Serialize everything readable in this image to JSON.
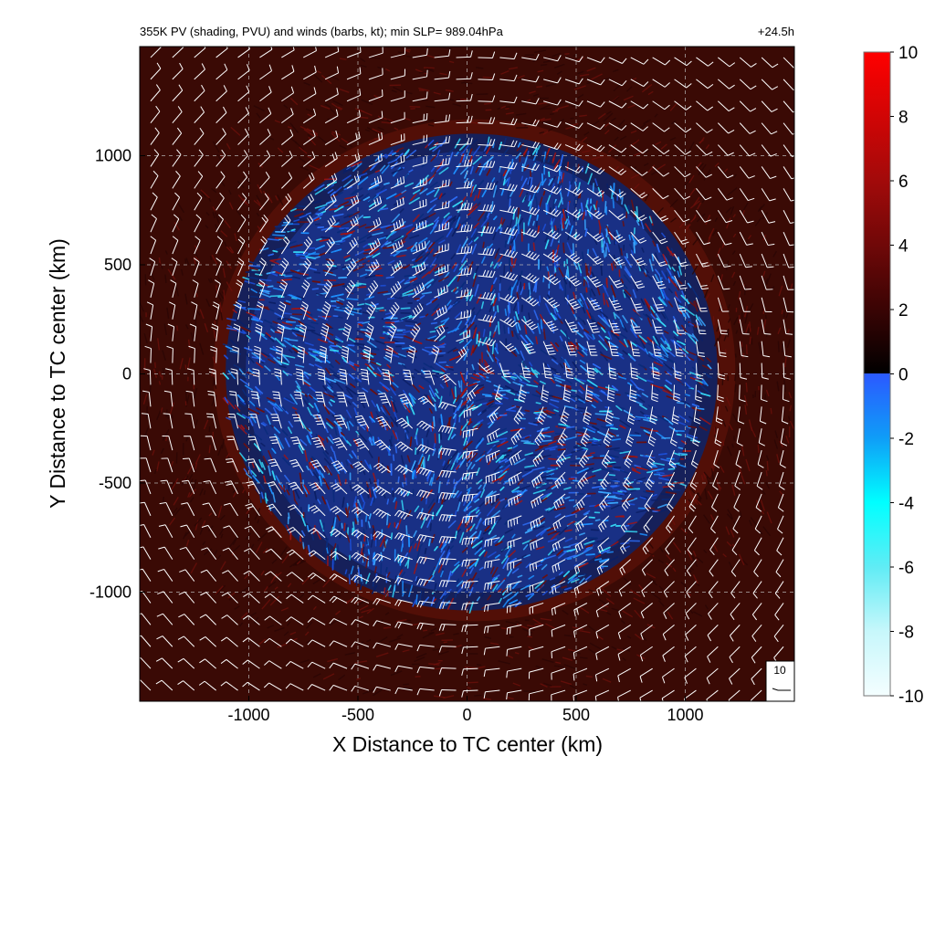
{
  "chart_data": {
    "type": "heatmap",
    "title": "355K PV (shading, PVU) and winds (barbs, kt); min SLP= 989.04hPa",
    "time_label": "+24.5h",
    "xlabel": "X Distance to TC center (km)",
    "ylabel": "Y Distance to TC center (km)",
    "xlim": [
      -1500,
      1500
    ],
    "ylim": [
      -1500,
      1500
    ],
    "x_ticks": [
      -1000,
      -500,
      0,
      500,
      1000
    ],
    "y_ticks": [
      -1000,
      -500,
      0,
      500,
      1000
    ],
    "x_tick_labels": [
      "-1000",
      "-500",
      "0",
      "500",
      "1000"
    ],
    "y_tick_labels": [
      "-1000",
      "-500",
      "0",
      "500",
      "1000"
    ],
    "grid": true,
    "grid_style": "dashed",
    "colorbar": {
      "min": -10,
      "max": 10,
      "ticks": [
        10,
        8,
        6,
        4,
        2,
        0,
        -2,
        -4,
        -6,
        -8,
        -10
      ],
      "tick_labels": [
        "10",
        "8",
        "6",
        "4",
        "2",
        "0",
        "-2",
        "-4",
        "-6",
        "-8",
        "-10"
      ],
      "colors_positive": [
        "#000000",
        "#3a0404",
        "#700808",
        "#a20a0a",
        "#d10505",
        "#ff0000"
      ],
      "colors_negative": [
        "#2b59ff",
        "#0f9df7",
        "#00ffff",
        "#60ecf5",
        "#c7f7fb",
        "#f4feff"
      ]
    },
    "field": {
      "background_color": "#3a0a05",
      "storm_radius_km": 1150,
      "storm_center_km": [
        0,
        0
      ],
      "dominant_values": "negative PV (blue) within storm, weak positive PV (dark red) outside"
    },
    "barbs": {
      "reference_label": "10",
      "reference_speed_kt": 10,
      "spacing_km": 100,
      "rotation": "counter-clockwise"
    }
  }
}
